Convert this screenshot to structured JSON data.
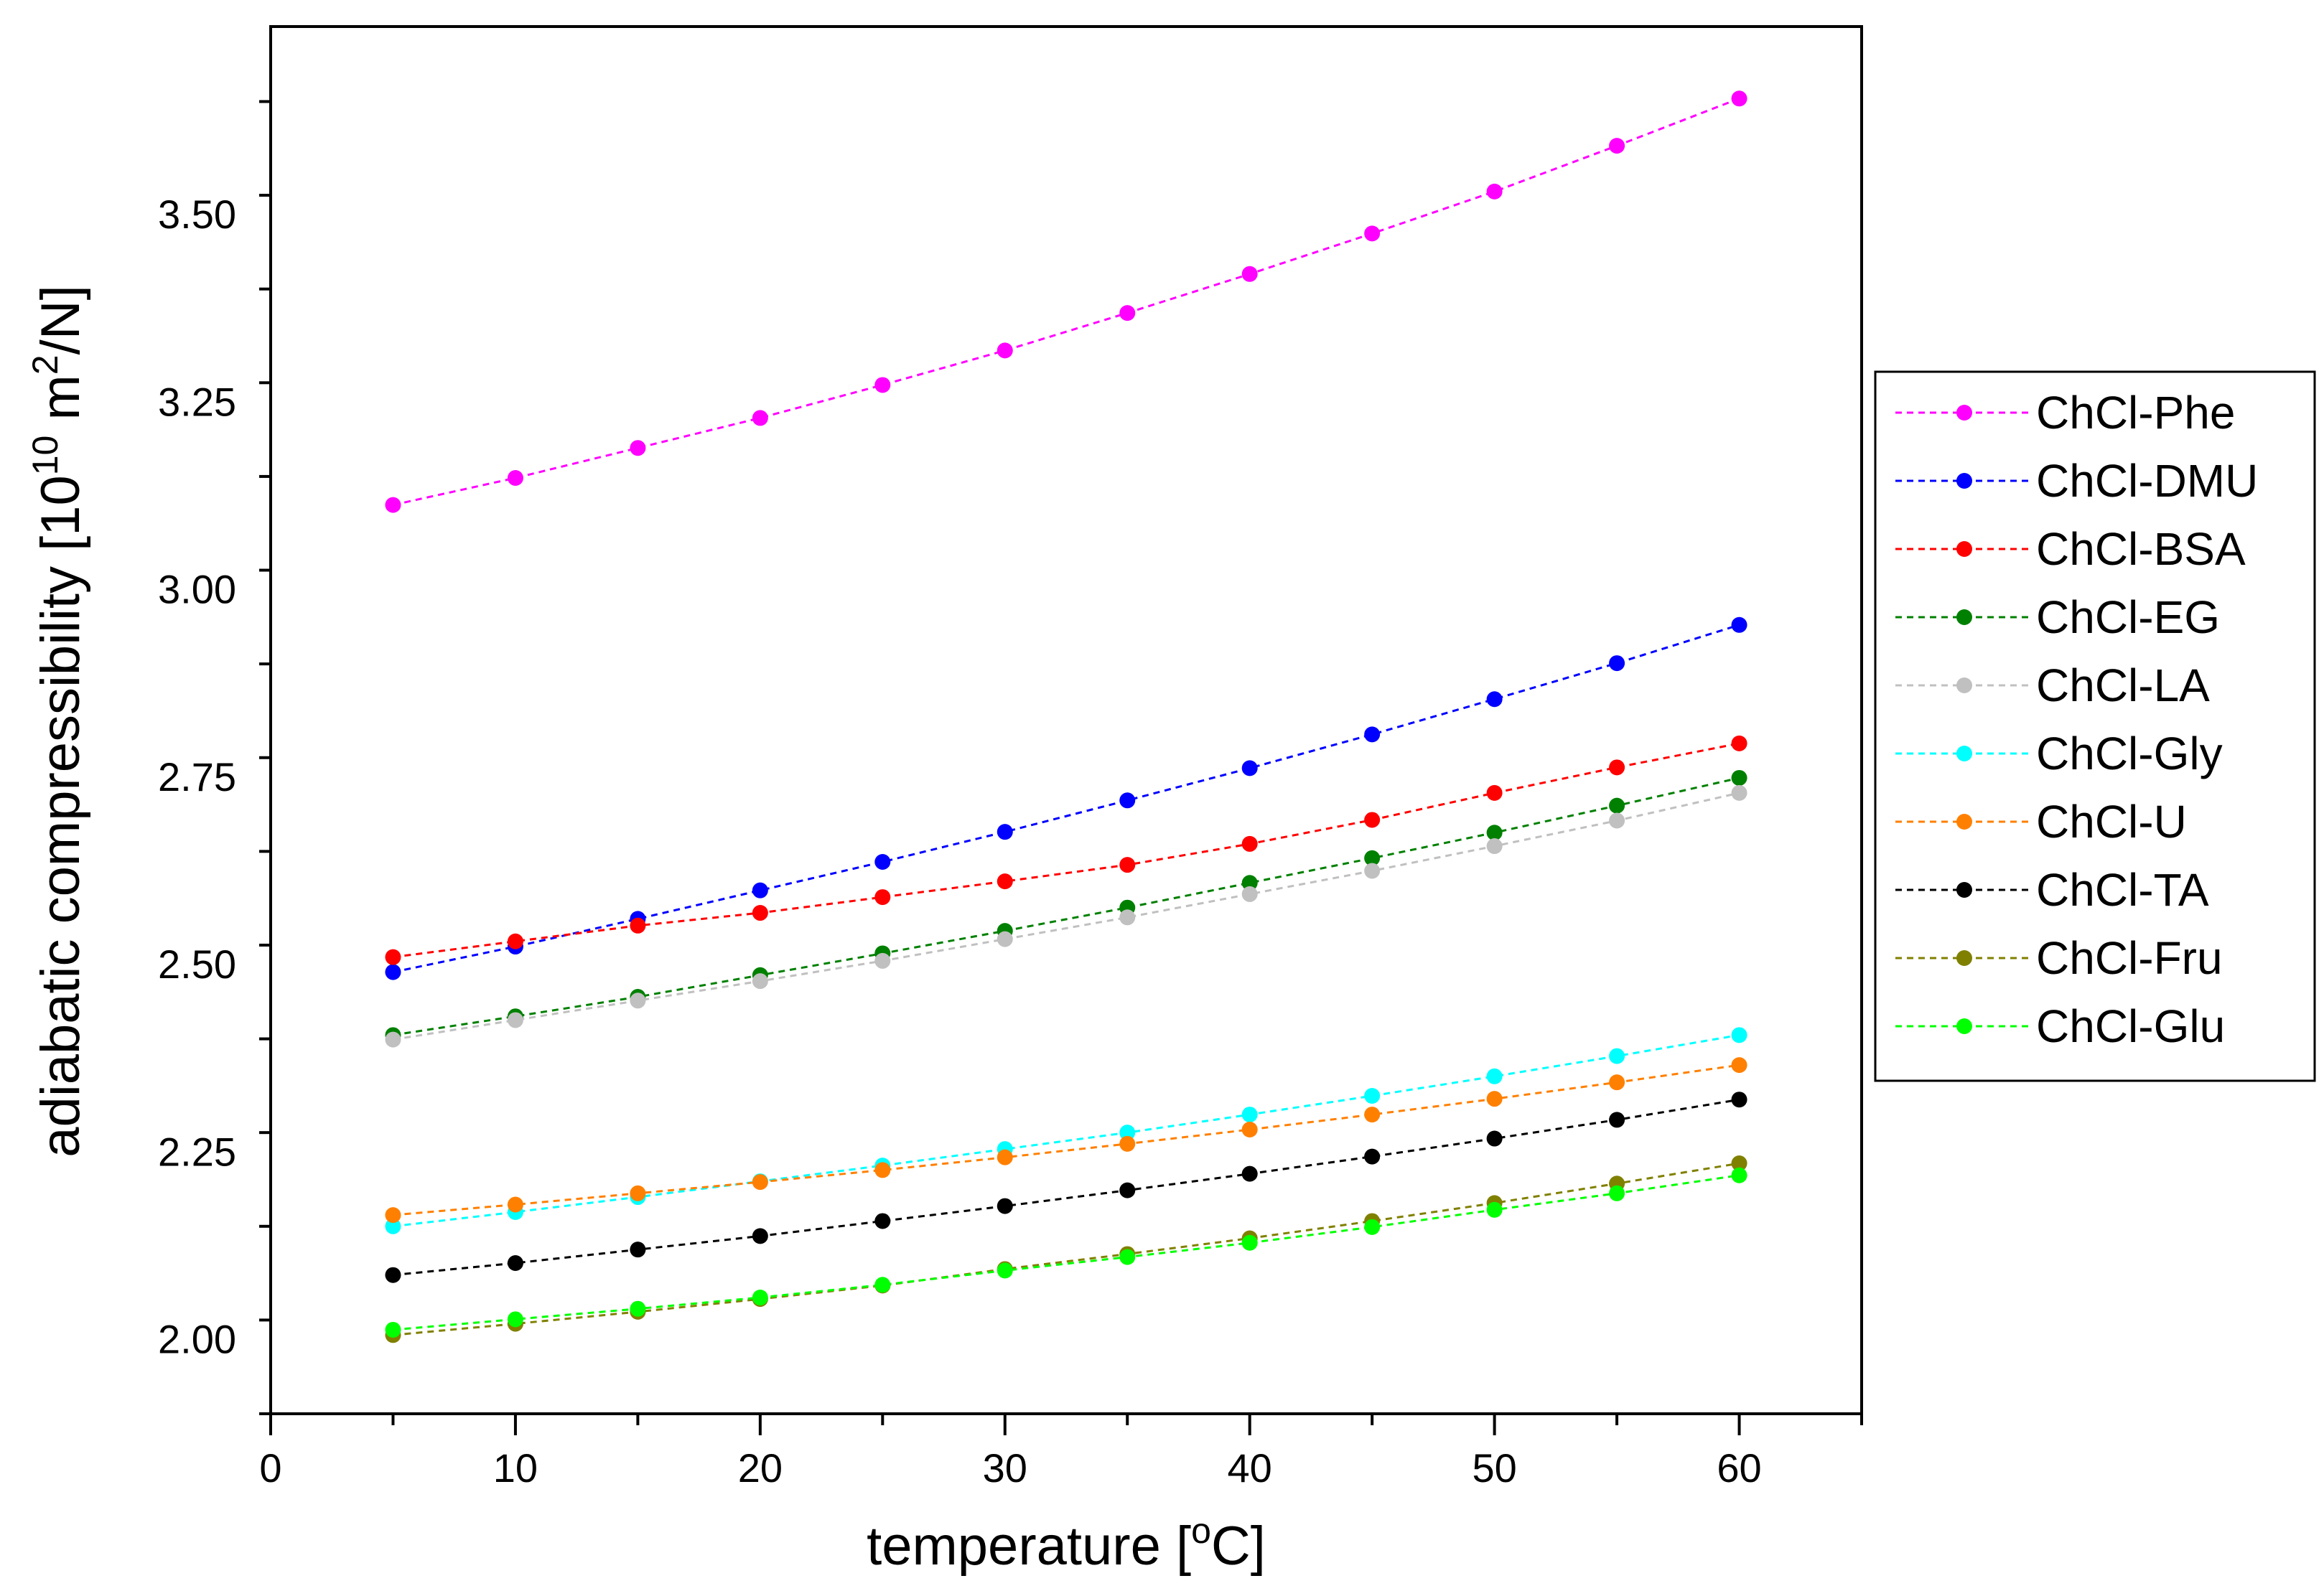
{
  "chart_data": {
    "type": "line",
    "title": "",
    "xlabel": "temperature [°C]",
    "xlabel_parts": {
      "main": "temperature [",
      "sup": "o",
      "unit": "C]"
    },
    "ylabel": "adiabatic compressibility [10^10 m^2/N]",
    "ylabel_parts": {
      "main": "adiabatic compressibility  [10",
      "sup1": "10",
      "mid": " m",
      "sup2": "2",
      "end": "/N]"
    },
    "xlim": [
      0,
      65
    ],
    "ylim": [
      1.9,
      3.75
    ],
    "xticks": [
      0,
      10,
      20,
      30,
      40,
      50,
      60
    ],
    "yticks": [
      2.0,
      2.25,
      2.5,
      2.75,
      3.0,
      3.25,
      3.5
    ],
    "ytick_labels": [
      "2.00",
      "2.25",
      "2.50",
      "2.75",
      "3.00",
      "3.25",
      "3.50"
    ],
    "grid": false,
    "legend_position": "right",
    "line_style": "dashed",
    "x": [
      5,
      10,
      15,
      20,
      25,
      30,
      35,
      40,
      45,
      50,
      55,
      60
    ],
    "series": [
      {
        "name": "ChCl-Phe",
        "color": "#ff00ff",
        "values": [
          3.112,
          3.148,
          3.188,
          3.228,
          3.272,
          3.318,
          3.368,
          3.42,
          3.474,
          3.53,
          3.591,
          3.654
        ]
      },
      {
        "name": "ChCl-DMU",
        "color": "#0000ff",
        "values": [
          2.489,
          2.523,
          2.56,
          2.598,
          2.636,
          2.676,
          2.718,
          2.761,
          2.806,
          2.853,
          2.901,
          2.952
        ]
      },
      {
        "name": "ChCl-BSA",
        "color": "#ff0000",
        "values": [
          2.509,
          2.53,
          2.551,
          2.568,
          2.589,
          2.61,
          2.632,
          2.66,
          2.692,
          2.728,
          2.762,
          2.794
        ]
      },
      {
        "name": "ChCl-EG",
        "color": "#008000",
        "values": [
          2.405,
          2.43,
          2.456,
          2.485,
          2.514,
          2.544,
          2.575,
          2.608,
          2.641,
          2.675,
          2.711,
          2.748
        ]
      },
      {
        "name": "ChCl-LA",
        "color": "#c0c0c0",
        "values": [
          2.399,
          2.425,
          2.451,
          2.477,
          2.504,
          2.533,
          2.562,
          2.593,
          2.624,
          2.657,
          2.691,
          2.728
        ]
      },
      {
        "name": "ChCl-Gly",
        "color": "#00ffff",
        "values": [
          2.15,
          2.169,
          2.189,
          2.21,
          2.231,
          2.253,
          2.275,
          2.299,
          2.324,
          2.35,
          2.377,
          2.405
        ]
      },
      {
        "name": "ChCl-U",
        "color": "#ff8000",
        "values": [
          2.165,
          2.179,
          2.194,
          2.209,
          2.225,
          2.242,
          2.26,
          2.279,
          2.299,
          2.32,
          2.342,
          2.365
        ]
      },
      {
        "name": "ChCl-TA",
        "color": "#000000",
        "values": [
          2.085,
          2.101,
          2.119,
          2.137,
          2.157,
          2.177,
          2.198,
          2.22,
          2.243,
          2.267,
          2.292,
          2.319
        ]
      },
      {
        "name": "ChCl-Fru",
        "color": "#808000",
        "values": [
          2.005,
          2.02,
          2.036,
          2.053,
          2.071,
          2.093,
          2.113,
          2.134,
          2.157,
          2.181,
          2.207,
          2.234
        ]
      },
      {
        "name": "ChCl-Glu",
        "color": "#00ff00",
        "values": [
          2.012,
          2.026,
          2.04,
          2.055,
          2.072,
          2.091,
          2.109,
          2.128,
          2.149,
          2.172,
          2.194,
          2.218
        ]
      }
    ]
  }
}
